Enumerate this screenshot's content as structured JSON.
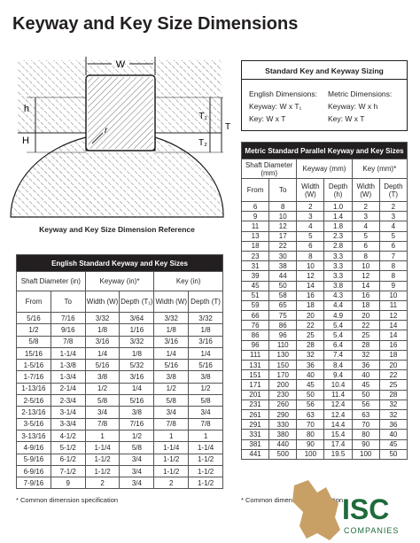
{
  "title": "Keyway and Key Size Dimensions",
  "diagram": {
    "caption": "Keyway and Key Size Dimension Reference",
    "labels": {
      "w": "W",
      "h": "h",
      "H": "H",
      "t1": "T₁",
      "t": "T",
      "t2": "T₂",
      "r": "r"
    }
  },
  "sizing": {
    "title": "Standard Key and Keyway Sizing",
    "english": {
      "heading": "English Dimensions:",
      "keyway": "Keyway: W x T₁",
      "key": "Key: W x T"
    },
    "metric": {
      "heading": "Metric Dimensions:",
      "keyway": "Keyway: W x h",
      "key": "Key: W x T"
    }
  },
  "english_table": {
    "title": "English Standard Keyway and Key Sizes",
    "groups": [
      "Shaft Diameter (in)",
      "Keyway (in)*",
      "Key (in)"
    ],
    "columns": [
      "From",
      "To",
      "Width (W)",
      "Depth (T₁)",
      "Width (W)",
      "Depth (T)"
    ],
    "rows": [
      [
        "5/16",
        "7/16",
        "3/32",
        "3/64",
        "3/32",
        "3/32"
      ],
      [
        "1/2",
        "9/16",
        "1/8",
        "1/16",
        "1/8",
        "1/8"
      ],
      [
        "5/8",
        "7/8",
        "3/16",
        "3/32",
        "3/16",
        "3/16"
      ],
      [
        "15/16",
        "1-1/4",
        "1/4",
        "1/8",
        "1/4",
        "1/4"
      ],
      [
        "1-5/16",
        "1-3/8",
        "5/16",
        "5/32",
        "5/16",
        "5/16"
      ],
      [
        "1-7/16",
        "1-3/4",
        "3/8",
        "3/16",
        "3/8",
        "3/8"
      ],
      [
        "1-13/16",
        "2-1/4",
        "1/2",
        "1/4",
        "1/2",
        "1/2"
      ],
      [
        "2-5/16",
        "2-3/4",
        "5/8",
        "5/16",
        "5/8",
        "5/8"
      ],
      [
        "2-13/16",
        "3-1/4",
        "3/4",
        "3/8",
        "3/4",
        "3/4"
      ],
      [
        "3-5/16",
        "3-3/4",
        "7/8",
        "7/16",
        "7/8",
        "7/8"
      ],
      [
        "3-13/16",
        "4-1/2",
        "1",
        "1/2",
        "1",
        "1"
      ],
      [
        "4-9/16",
        "5-1/2",
        "1-1/4",
        "5/8",
        "1-1/4",
        "1-1/4"
      ],
      [
        "5-9/16",
        "6-1/2",
        "1-1/2",
        "3/4",
        "1-1/2",
        "1-1/2"
      ],
      [
        "6-9/16",
        "7-1/2",
        "1-1/2",
        "3/4",
        "1-1/2",
        "1-1/2"
      ],
      [
        "7-9/16",
        "9",
        "2",
        "3/4",
        "2",
        "1-1/2"
      ]
    ],
    "footnote": "* Common dimension specification"
  },
  "metric_table": {
    "title": "Metric Standard Parallel Keyway and Key Sizes",
    "groups": [
      "Shaft Diameter (mm)",
      "Keyway (mm)",
      "Key (mm)*"
    ],
    "columns": [
      "From",
      "To",
      "Width (W)",
      "Depth (h)",
      "Width (W)",
      "Depth (T)"
    ],
    "rows": [
      [
        "6",
        "8",
        "2",
        "1.0",
        "2",
        "2"
      ],
      [
        "9",
        "10",
        "3",
        "1.4",
        "3",
        "3"
      ],
      [
        "11",
        "12",
        "4",
        "1.8",
        "4",
        "4"
      ],
      [
        "13",
        "17",
        "5",
        "2.3",
        "5",
        "5"
      ],
      [
        "18",
        "22",
        "6",
        "2.8",
        "6",
        "6"
      ],
      [
        "23",
        "30",
        "8",
        "3.3",
        "8",
        "7"
      ],
      [
        "31",
        "38",
        "10",
        "3.3",
        "10",
        "8"
      ],
      [
        "39",
        "44",
        "12",
        "3.3",
        "12",
        "8"
      ],
      [
        "45",
        "50",
        "14",
        "3.8",
        "14",
        "9"
      ],
      [
        "51",
        "58",
        "16",
        "4.3",
        "16",
        "10"
      ],
      [
        "59",
        "65",
        "18",
        "4.4",
        "18",
        "11"
      ],
      [
        "66",
        "75",
        "20",
        "4.9",
        "20",
        "12"
      ],
      [
        "76",
        "86",
        "22",
        "5.4",
        "22",
        "14"
      ],
      [
        "86",
        "96",
        "25",
        "5.4",
        "25",
        "14"
      ],
      [
        "96",
        "110",
        "28",
        "6.4",
        "28",
        "16"
      ],
      [
        "111",
        "130",
        "32",
        "7.4",
        "32",
        "18"
      ],
      [
        "131",
        "150",
        "36",
        "8.4",
        "36",
        "20"
      ],
      [
        "151",
        "170",
        "40",
        "9.4",
        "40",
        "22"
      ],
      [
        "171",
        "200",
        "45",
        "10.4",
        "45",
        "25"
      ],
      [
        "201",
        "230",
        "50",
        "11.4",
        "50",
        "28"
      ],
      [
        "231",
        "260",
        "56",
        "12.4",
        "56",
        "32"
      ],
      [
        "261",
        "290",
        "63",
        "12.4",
        "63",
        "32"
      ],
      [
        "291",
        "330",
        "70",
        "14.4",
        "70",
        "36"
      ],
      [
        "331",
        "380",
        "80",
        "15.4",
        "80",
        "40"
      ],
      [
        "381",
        "440",
        "90",
        "17.4",
        "90",
        "45"
      ],
      [
        "441",
        "500",
        "100",
        "19.5",
        "100",
        "50"
      ]
    ],
    "footnote": "* Common dimension specification"
  },
  "logo": {
    "name": "ISC",
    "sub": "COMPANIES"
  }
}
